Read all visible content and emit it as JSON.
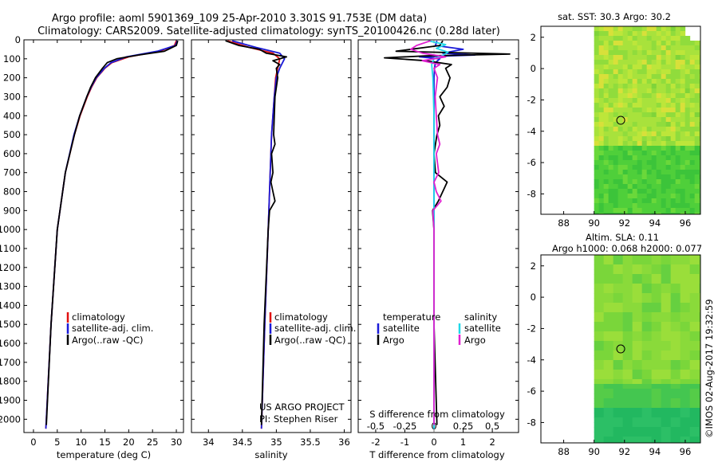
{
  "title": {
    "line1": "Argo profile: aoml 5901369_109 25-Apr-2010 3.301S 91.753E (DM data)",
    "line2": "Climatology: CARS2009. Satellite-adjusted climatology: synTS_20100426.nc (0.28d later)"
  },
  "colors": {
    "climatology": "#e01010",
    "satellite": "#1a1ad8",
    "argo": "#000000",
    "satellite_s": "#20d8e8",
    "argo_s": "#e020d0"
  },
  "chart_data": [
    {
      "type": "line",
      "name": "temperature-profile",
      "xlabel": "temperature (deg C)",
      "ylabel": "depth",
      "xlim": [
        -2,
        31.5
      ],
      "ylim": [
        2070,
        0
      ],
      "xticks": [
        0,
        5,
        10,
        15,
        20,
        25,
        30
      ],
      "yticks": [
        0,
        100,
        200,
        300,
        400,
        500,
        600,
        700,
        800,
        900,
        1000,
        1100,
        1200,
        1300,
        1400,
        1500,
        1600,
        1700,
        1800,
        1900,
        2000
      ],
      "legend": [
        "climatology",
        "satellite-adj. clim.",
        "Argo(..raw -QC)"
      ],
      "series": [
        {
          "name": "climatology",
          "depth": [
            5,
            30,
            60,
            90,
            120,
            150,
            200,
            250,
            300,
            400,
            500,
            700,
            1000,
            1500,
            2050
          ],
          "values": [
            30.0,
            29.6,
            26.5,
            20.0,
            16.5,
            15.0,
            13.3,
            12.2,
            11.3,
            9.8,
            8.6,
            6.7,
            5.0,
            3.7,
            2.6
          ]
        },
        {
          "name": "satellite-adj. clim.",
          "depth": [
            5,
            30,
            60,
            90,
            120,
            150,
            200,
            250,
            300,
            400,
            500,
            700,
            1000,
            1500,
            2050
          ],
          "values": [
            30.2,
            29.8,
            26.0,
            19.5,
            16.3,
            14.9,
            13.2,
            12.1,
            11.2,
            9.7,
            8.5,
            6.7,
            5.0,
            3.7,
            2.6
          ]
        },
        {
          "name": "Argo(..raw -QC)",
          "depth": [
            5,
            30,
            60,
            80,
            100,
            120,
            150,
            200,
            250,
            300,
            400,
            500,
            700,
            1000,
            1500,
            2030
          ],
          "values": [
            30.3,
            30.0,
            27.5,
            22.0,
            17.5,
            15.5,
            14.5,
            13.0,
            12.0,
            11.2,
            9.7,
            8.6,
            6.7,
            5.0,
            3.7,
            2.7
          ]
        }
      ]
    },
    {
      "type": "line",
      "name": "salinity-profile",
      "xlabel": "salinity",
      "xlim": [
        33.75,
        36.1
      ],
      "ylim": [
        2070,
        0
      ],
      "xticks": [
        34,
        34.5,
        35,
        35.5,
        36
      ],
      "legend": [
        "climatology",
        "satellite-adj. clim.",
        "Argo(..raw -QC)"
      ],
      "annotation": [
        "US ARGO PROJECT",
        "PI: Stephen Riser"
      ],
      "series": [
        {
          "name": "climatology",
          "depth": [
            5,
            40,
            70,
            100,
            150,
            200,
            300,
            400,
            500,
            700,
            1000,
            1500,
            2050
          ],
          "values": [
            34.28,
            34.6,
            34.95,
            35.05,
            35.02,
            34.99,
            34.97,
            34.95,
            34.93,
            34.91,
            34.88,
            34.83,
            34.78
          ]
        },
        {
          "name": "satellite-adj. clim.",
          "depth": [
            5,
            40,
            70,
            100,
            150,
            200,
            300,
            400,
            500,
            700,
            1000,
            1500,
            2050
          ],
          "values": [
            34.35,
            34.7,
            35.05,
            35.12,
            35.05,
            35.0,
            34.97,
            34.95,
            34.93,
            34.91,
            34.88,
            34.83,
            34.78
          ]
        },
        {
          "name": "Argo(..raw -QC)",
          "depth": [
            5,
            30,
            50,
            70,
            90,
            110,
            130,
            150,
            200,
            250,
            300,
            400,
            500,
            550,
            600,
            700,
            750,
            800,
            850,
            900,
            1000,
            1500,
            2030
          ],
          "values": [
            34.25,
            34.45,
            34.75,
            34.85,
            35.15,
            34.95,
            35.05,
            35.0,
            35.02,
            35.0,
            34.98,
            34.97,
            34.96,
            34.98,
            34.93,
            34.95,
            34.92,
            34.95,
            34.98,
            34.9,
            34.88,
            34.82,
            34.78
          ]
        }
      ]
    },
    {
      "type": "line",
      "name": "difference-profile",
      "xlabel": "T difference from climatology",
      "xlabel2": "S difference from climatology",
      "xlim": [
        -2.6,
        2.9
      ],
      "ylim": [
        2070,
        0
      ],
      "xticks": [
        -2,
        -1,
        0,
        1,
        2
      ],
      "xticks2": [
        -0.5,
        -0.25,
        0,
        0.25,
        0.5
      ],
      "legend_left_title": "temperature",
      "legend_right_title": "salinity",
      "legend_items": [
        "satellite",
        "Argo",
        "satellite",
        "Argo"
      ],
      "series": [
        {
          "name": "T satellite",
          "depth": [
            5,
            30,
            50,
            70,
            80,
            90,
            100,
            120,
            150,
            200,
            300,
            500,
            1000,
            1500,
            2050
          ],
          "values": [
            0.1,
            0.05,
            1.0,
            0.3,
            1.4,
            -0.5,
            0.2,
            0.05,
            0.02,
            0.0,
            0.0,
            0.0,
            0.0,
            0.0,
            0.0
          ]
        },
        {
          "name": "T Argo",
          "depth": [
            5,
            30,
            60,
            75,
            85,
            95,
            110,
            130,
            150,
            200,
            250,
            300,
            350,
            400,
            450,
            500,
            600,
            700,
            750,
            800,
            850,
            900,
            1000,
            1500,
            2030
          ],
          "values": [
            0.3,
            0.2,
            -1.3,
            2.6,
            -0.3,
            -1.7,
            -0.3,
            0.6,
            0.4,
            0.55,
            0.45,
            0.2,
            0.35,
            0.15,
            0.2,
            0.1,
            0.0,
            0.05,
            0.45,
            0.3,
            0.15,
            -0.05,
            0.0,
            0.0,
            0.1
          ]
        },
        {
          "name": "S satellite",
          "depth": [
            5,
            25,
            45,
            65,
            80,
            100,
            130,
            200,
            400,
            600,
            1000,
            1500,
            2050
          ],
          "values": [
            -0.05,
            0.1,
            0.02,
            0.12,
            0.08,
            0.0,
            -0.02,
            -0.01,
            0.0,
            0.0,
            0.0,
            0.0,
            0.0
          ]
        },
        {
          "name": "S Argo",
          "depth": [
            5,
            30,
            50,
            70,
            90,
            110,
            130,
            150,
            200,
            250,
            300,
            400,
            500,
            550,
            600,
            700,
            750,
            800,
            850,
            900,
            1000,
            1500,
            2030
          ],
          "values": [
            -0.03,
            -0.15,
            -0.2,
            -0.1,
            0.1,
            -0.1,
            0.05,
            0.0,
            0.03,
            0.02,
            0.01,
            0.02,
            0.03,
            0.05,
            0.02,
            0.04,
            0.0,
            0.02,
            0.06,
            -0.01,
            0.0,
            0.0,
            0.0
          ]
        }
      ]
    },
    {
      "type": "heatmap",
      "name": "sst-map",
      "title": "sat. SST: 30.3 Argo: 30.2",
      "xlim": [
        86.5,
        97
      ],
      "ylim": [
        -9.3,
        2.7
      ],
      "xticks": [
        88,
        90,
        92,
        94,
        96
      ],
      "yticks": [
        2,
        0,
        -2,
        -4,
        -6,
        -8
      ],
      "marker": [
        91.753,
        -3.301
      ]
    },
    {
      "type": "heatmap",
      "name": "sla-map",
      "title": "Altim. SLA: 0.11",
      "subtitle": "Argo h1000: 0.068 h2000: 0.077",
      "xlim": [
        86.5,
        97
      ],
      "ylim": [
        -9.3,
        2.7
      ],
      "xticks": [
        88,
        90,
        92,
        94,
        96
      ],
      "yticks": [
        2,
        0,
        -2,
        -4,
        -6,
        -8
      ],
      "marker": [
        91.753,
        -3.301
      ]
    }
  ],
  "credit": "©IMOS 02-Aug-2017 19:32:59"
}
